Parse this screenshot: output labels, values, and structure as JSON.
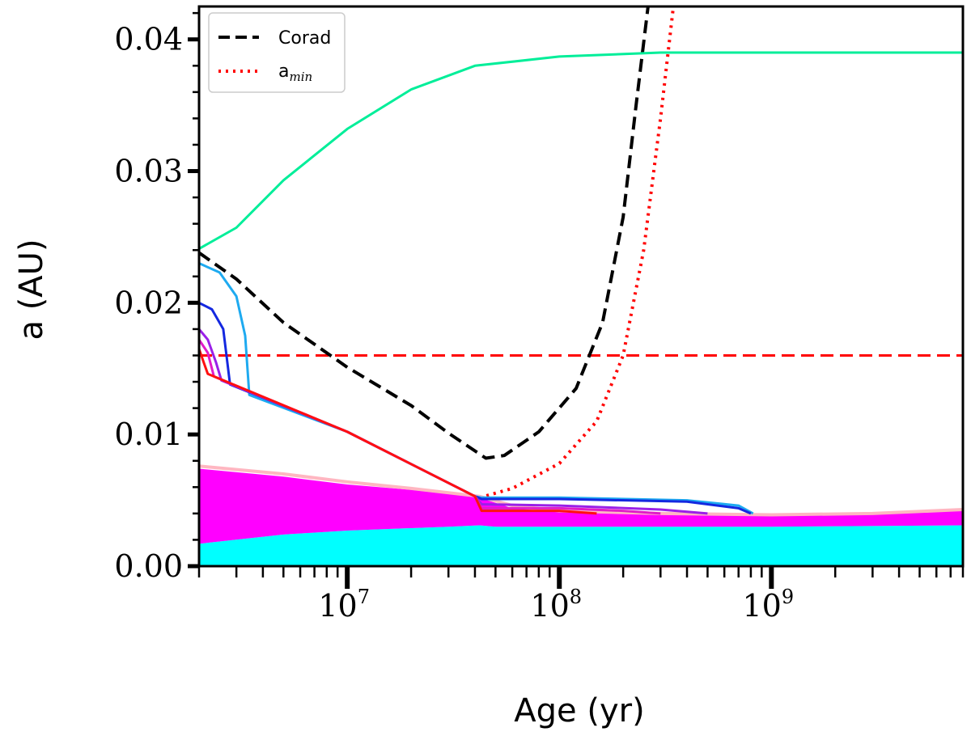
{
  "chart_data": {
    "type": "line",
    "xscale": "log",
    "xlabel": "Age (yr)",
    "ylabel": "a (AU)",
    "xlim": [
      2000000,
      8000000000
    ],
    "ylim": [
      0,
      0.0425
    ],
    "yticks": [
      0.0,
      0.01,
      0.02,
      0.03,
      0.04
    ],
    "ytick_labels": [
      "0.00",
      "0.01",
      "0.02",
      "0.03",
      "0.04"
    ],
    "xticks": [
      10000000,
      100000000,
      1000000000
    ],
    "xtick_labels": [
      {
        "base": "10",
        "exp": "7"
      },
      {
        "base": "10",
        "exp": "8"
      },
      {
        "base": "10",
        "exp": "9"
      }
    ],
    "legend": {
      "position": "top-left",
      "entries": [
        {
          "label": "Corad",
          "color": "#000000",
          "style": "dashed"
        },
        {
          "label": "a",
          "sub": "min",
          "color": "#ff0000",
          "style": "dotted"
        }
      ]
    },
    "reference_lines": [
      {
        "name": "threshold-a",
        "y": 0.016,
        "color": "#ff0000",
        "style": "dashed"
      }
    ],
    "bands": [
      {
        "name": "inner-region",
        "color": "#00ffff",
        "points": [
          [
            2000000,
            0
          ],
          [
            2000000,
            0.0017
          ],
          [
            5000000,
            0.0024
          ],
          [
            10000000,
            0.0027
          ],
          [
            30000000,
            0.003
          ],
          [
            42000000,
            0.0031
          ],
          [
            50000000,
            0.003
          ],
          [
            100000000,
            0.003
          ],
          [
            1000000000,
            0.003
          ],
          [
            8000000000,
            0.0031
          ],
          [
            8000000000,
            0
          ]
        ]
      },
      {
        "name": "corotation-region",
        "color": "#ff00ff",
        "points": [
          [
            2000000,
            0.0017
          ],
          [
            2000000,
            0.0074
          ],
          [
            5000000,
            0.0068
          ],
          [
            10000000,
            0.0062
          ],
          [
            20000000,
            0.0058
          ],
          [
            42000000,
            0.0052
          ],
          [
            60000000,
            0.0044
          ],
          [
            100000000,
            0.0041
          ],
          [
            300000000,
            0.0039
          ],
          [
            1000000000,
            0.0038
          ],
          [
            3000000000,
            0.0039
          ],
          [
            8000000000,
            0.0042
          ],
          [
            8000000000,
            0.0031
          ],
          [
            1000000000,
            0.003
          ],
          [
            100000000,
            0.003
          ],
          [
            50000000,
            0.003
          ],
          [
            42000000,
            0.0031
          ],
          [
            30000000,
            0.003
          ],
          [
            10000000,
            0.0027
          ],
          [
            5000000,
            0.0024
          ]
        ]
      }
    ],
    "series": [
      {
        "name": "Corad",
        "color": "#000000",
        "style": "dashed",
        "width": 4,
        "points": [
          [
            2000000,
            0.0238
          ],
          [
            3000000,
            0.0218
          ],
          [
            5000000,
            0.0185
          ],
          [
            10000000,
            0.0151
          ],
          [
            20000000,
            0.0122
          ],
          [
            30000000,
            0.0101
          ],
          [
            45000000,
            0.0082
          ],
          [
            55000000,
            0.0084
          ],
          [
            80000000,
            0.0102
          ],
          [
            120000000,
            0.0135
          ],
          [
            160000000,
            0.0185
          ],
          [
            200000000,
            0.0265
          ],
          [
            230000000,
            0.035
          ],
          [
            262000000,
            0.0425
          ]
        ]
      },
      {
        "name": "a_min",
        "color": "#ff0000",
        "style": "dotted",
        "width": 4,
        "points": [
          [
            42000000,
            0.0052
          ],
          [
            60000000,
            0.0059
          ],
          [
            100000000,
            0.0078
          ],
          [
            150000000,
            0.011
          ],
          [
            200000000,
            0.016
          ],
          [
            250000000,
            0.024
          ],
          [
            300000000,
            0.034
          ],
          [
            345000000,
            0.0425
          ]
        ]
      },
      {
        "name": "pink-boundary",
        "color": "#ffb6c1",
        "style": "solid",
        "width": 4,
        "points": [
          [
            2000000,
            0.0076
          ],
          [
            5000000,
            0.007
          ],
          [
            10000000,
            0.0064
          ],
          [
            20000000,
            0.0059
          ],
          [
            42000000,
            0.0053
          ],
          [
            60000000,
            0.0046
          ],
          [
            100000000,
            0.0042
          ],
          [
            300000000,
            0.004
          ],
          [
            1000000000,
            0.0039
          ],
          [
            3000000000,
            0.004
          ],
          [
            8000000000,
            0.0043
          ]
        ]
      },
      {
        "name": "outer-track",
        "color": "#00ee99",
        "style": "solid",
        "width": 3,
        "points": [
          [
            2000000,
            0.0241
          ],
          [
            3000000,
            0.0257
          ],
          [
            5000000,
            0.0293
          ],
          [
            10000000,
            0.0332
          ],
          [
            20000000,
            0.0362
          ],
          [
            40000000,
            0.038
          ],
          [
            100000000,
            0.0387
          ],
          [
            300000000,
            0.039
          ],
          [
            8000000000,
            0.039
          ]
        ]
      },
      {
        "name": "track-light-blue",
        "color": "#1eaaf0",
        "style": "solid",
        "width": 3,
        "points": [
          [
            2000000,
            0.023
          ],
          [
            2500000,
            0.0223
          ],
          [
            3000000,
            0.0205
          ],
          [
            3300000,
            0.0175
          ],
          [
            3450000,
            0.013
          ],
          [
            10000000,
            0.0102
          ],
          [
            40000000,
            0.0053
          ],
          [
            43000000,
            0.0052
          ],
          [
            100000000,
            0.0052
          ],
          [
            400000000,
            0.005
          ],
          [
            700000000,
            0.0046
          ],
          [
            820000000,
            0.004
          ]
        ]
      },
      {
        "name": "track-blue",
        "color": "#1428e0",
        "style": "solid",
        "width": 3,
        "points": [
          [
            2000000,
            0.02
          ],
          [
            2300000,
            0.0195
          ],
          [
            2600000,
            0.018
          ],
          [
            2800000,
            0.0138
          ],
          [
            10000000,
            0.0102
          ],
          [
            40000000,
            0.0053
          ],
          [
            43000000,
            0.0051
          ],
          [
            100000000,
            0.0051
          ],
          [
            400000000,
            0.0049
          ],
          [
            700000000,
            0.0044
          ],
          [
            800000000,
            0.004
          ]
        ]
      },
      {
        "name": "track-purple",
        "color": "#9a20e8",
        "style": "solid",
        "width": 3,
        "points": [
          [
            2000000,
            0.018
          ],
          [
            2200000,
            0.0172
          ],
          [
            2400000,
            0.0155
          ],
          [
            2550000,
            0.0141
          ],
          [
            10000000,
            0.0102
          ],
          [
            40000000,
            0.0053
          ],
          [
            43000000,
            0.0047
          ],
          [
            100000000,
            0.0046
          ],
          [
            300000000,
            0.0043
          ],
          [
            500000000,
            0.004
          ]
        ]
      },
      {
        "name": "track-magenta",
        "color": "#e01cc8",
        "style": "solid",
        "width": 3,
        "points": [
          [
            2000000,
            0.0172
          ],
          [
            2200000,
            0.0162
          ],
          [
            2350000,
            0.0144
          ],
          [
            10000000,
            0.0102
          ],
          [
            40000000,
            0.0053
          ],
          [
            43000000,
            0.0044
          ],
          [
            100000000,
            0.0044
          ],
          [
            200000000,
            0.0042
          ],
          [
            300000000,
            0.004
          ]
        ]
      },
      {
        "name": "track-red",
        "color": "#ff1010",
        "style": "solid",
        "width": 3,
        "points": [
          [
            2000000,
            0.0165
          ],
          [
            2100000,
            0.0155
          ],
          [
            2200000,
            0.0146
          ],
          [
            10000000,
            0.0102
          ],
          [
            40000000,
            0.0053
          ],
          [
            43000000,
            0.0042
          ],
          [
            100000000,
            0.0042
          ],
          [
            150000000,
            0.004
          ]
        ]
      }
    ]
  }
}
